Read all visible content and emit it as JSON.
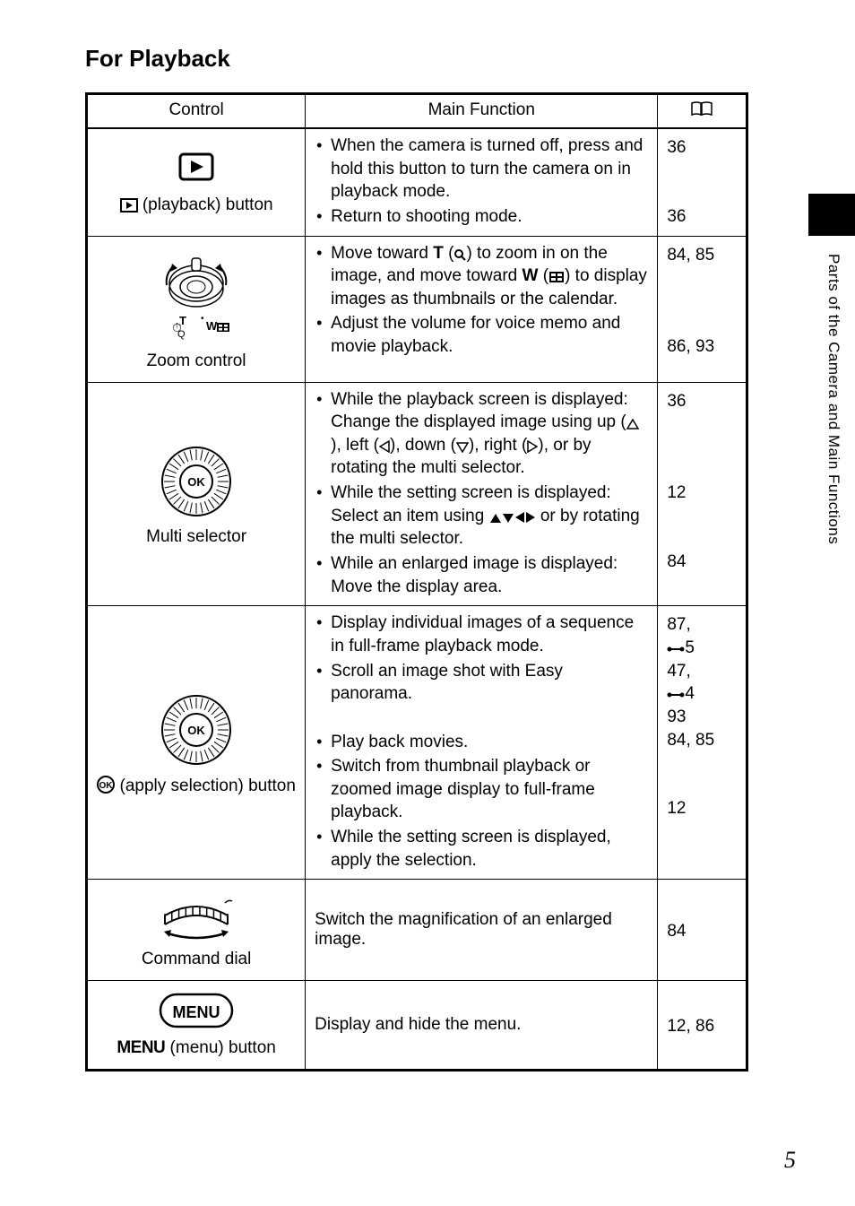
{
  "title": "For Playback",
  "side_text": "Parts of the Camera and Main Functions",
  "page_number": "5",
  "headers": {
    "control": "Control",
    "main_function": "Main Function"
  },
  "rows": [
    {
      "control_label_html": "<svg class='inline-icon' width='20' height='16'><rect x='1' y='1' width='18' height='14' fill='none' stroke='#000' stroke-width='2'/><polygon points='7,4 7,12 14,8' fill='#000'/></svg> (playback) button",
      "functions": [
        "When the camera is turned off, press and hold this button to turn the camera on in playback mode.",
        "Return to shooting mode."
      ],
      "pages_html": "36<br><br><br>36"
    },
    {
      "control_label_html": "Zoom control",
      "functions": [
        "Move toward <b>T</b> (<svg class='inline-icon' width='14' height='14'><circle cx='6' cy='6' r='4' fill='none' stroke='#000' stroke-width='2'/><line x1='9' y1='9' x2='13' y2='13' stroke='#000' stroke-width='2'/></svg>) to zoom in on the image, and move toward <b>W</b> (<svg class='inline-icon' width='18' height='14'><rect x='1' y='1' width='16' height='12' fill='#000'/><rect x='3' y='3' width='5' height='3' fill='#fff'/><rect x='10' y='3' width='5' height='3' fill='#fff'/><rect x='3' y='8' width='5' height='3' fill='#fff'/><rect x='10' y='8' width='5' height='3' fill='#fff'/></svg>) to display images as thumbnails or the calendar.",
        "Adjust the volume for voice memo and movie playback."
      ],
      "pages_html": "84, 85<br><br><br><br>86, 93"
    },
    {
      "control_label_html": "Multi selector",
      "functions": [
        "While the playback screen is displayed: Change the displayed image using up (<svg class='inline-icon' width='14' height='12'><polygon points='7,1 13,11 1,11' fill='none' stroke='#000' stroke-width='1.5'/></svg>), left (<svg class='inline-icon' width='12' height='14'><polygon points='1,7 11,1 11,13' fill='none' stroke='#000' stroke-width='1.5'/></svg>), down (<svg class='inline-icon' width='14' height='12'><polygon points='1,1 13,1 7,11' fill='none' stroke='#000' stroke-width='1.5'/></svg>), right (<svg class='inline-icon' width='12' height='14'><polygon points='1,1 11,7 1,13' fill='none' stroke='#000' stroke-width='1.5'/></svg>), or by rotating the multi selector.",
        "While the setting screen is displayed: Select an item using <svg class='inline-icon' width='14' height='12'><polygon points='7,1 13,11 1,11' fill='#000'/></svg><svg class='inline-icon' width='14' height='12'><polygon points='1,1 13,1 7,11' fill='#000'/></svg><svg class='inline-icon' width='12' height='14'><polygon points='1,7 11,1 11,13' fill='#000'/></svg><svg class='inline-icon' width='12' height='14'><polygon points='1,1 11,7 1,13' fill='#000'/></svg> or by rotating the multi selector.",
        "While an enlarged image is displayed: Move the display area."
      ],
      "pages_html": "36<br><br><br><br>12<br><br><br>84"
    },
    {
      "control_label_html": "<svg class='inline-icon' width='20' height='20'><circle cx='10' cy='10' r='9' fill='none' stroke='#000' stroke-width='2'/><text x='10' y='14' font-size='10' font-weight='bold' text-anchor='middle'>OK</text></svg> (apply selection) button",
      "functions": [
        "Display individual images of a sequence in full-frame playback mode.",
        "Scroll an image shot with Easy panorama.<br>&nbsp;",
        "Play back movies.",
        "Switch from thumbnail playback or zoomed image display to full-frame playback.",
        "While the setting screen is displayed, apply the selection."
      ],
      "pages_html": "87,<br><svg class='ref-icon' width='20' height='10'><circle cx='3' cy='5' r='2.5' fill='#000'/><line x1='3' y1='5' x2='17' y2='5' stroke='#000' stroke-width='2'/><circle cx='17' cy='5' r='2.5' fill='#000'/></svg>5<br>47,<br><svg class='ref-icon' width='20' height='10'><circle cx='3' cy='5' r='2.5' fill='#000'/><line x1='3' y1='5' x2='17' y2='5' stroke='#000' stroke-width='2'/><circle cx='17' cy='5' r='2.5' fill='#000'/></svg>4<br>93<br>84, 85<br><br><br>12"
    },
    {
      "control_label_html": "Command dial",
      "single_function": "Switch the magnification of an enlarged image.",
      "pages_html": "84"
    },
    {
      "control_label_html": "<span class='menu-word'>MENU</span> (menu) button",
      "single_function": "Display and hide the menu.",
      "pages_html": "12, 86"
    }
  ]
}
